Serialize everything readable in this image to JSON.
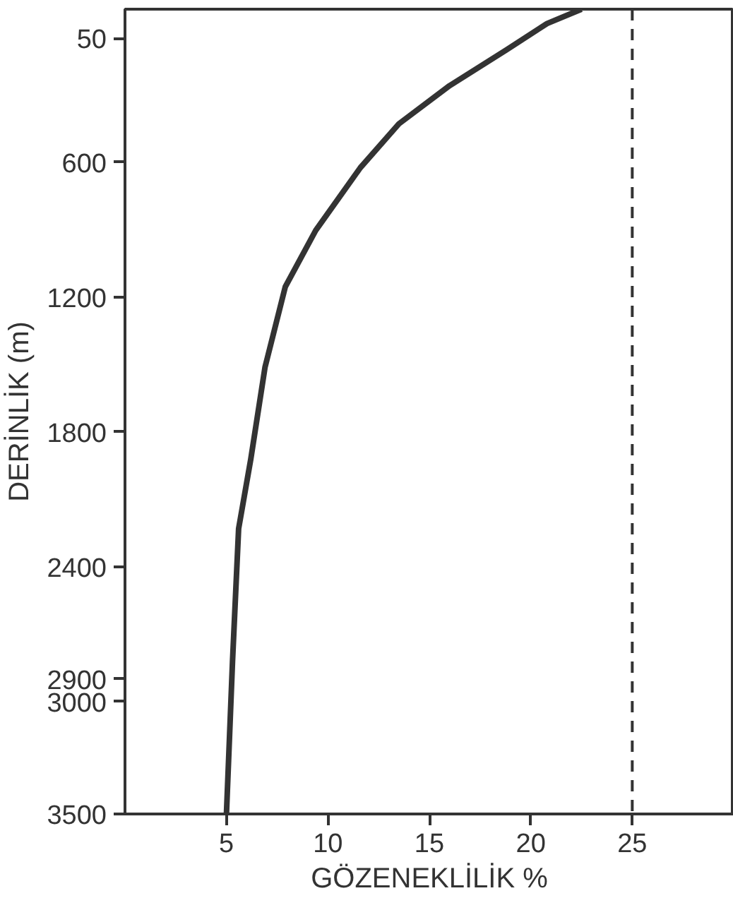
{
  "chart_data": {
    "type": "line",
    "xlabel": "GÖZENEKLİLİK %",
    "ylabel": "DERİNLİK (m)",
    "xlim": [
      0,
      30
    ],
    "xticks": [
      5,
      10,
      15,
      20,
      25
    ],
    "ylim": [
      3500,
      -80
    ],
    "yticks": [
      50,
      600,
      1200,
      1800,
      2400,
      2900,
      3000,
      3500
    ],
    "series": [
      {
        "color": "#333333",
        "x": [
          5,
          5.3,
          5.6,
          6.2,
          6.9,
          7.9,
          9.4,
          11.6,
          13.5,
          16,
          18.8,
          20.8,
          22.5
        ],
        "values": [
          3500,
          2820,
          2231,
          1921,
          1513,
          1155,
          904,
          625,
          430,
          260,
          101,
          -16,
          -80
        ]
      }
    ],
    "ref_lines": [
      {
        "axis": "x",
        "value": 25,
        "color": "#333333",
        "line_style": "dashed"
      }
    ],
    "grid": false,
    "marker": "none",
    "line_style": "solid"
  }
}
